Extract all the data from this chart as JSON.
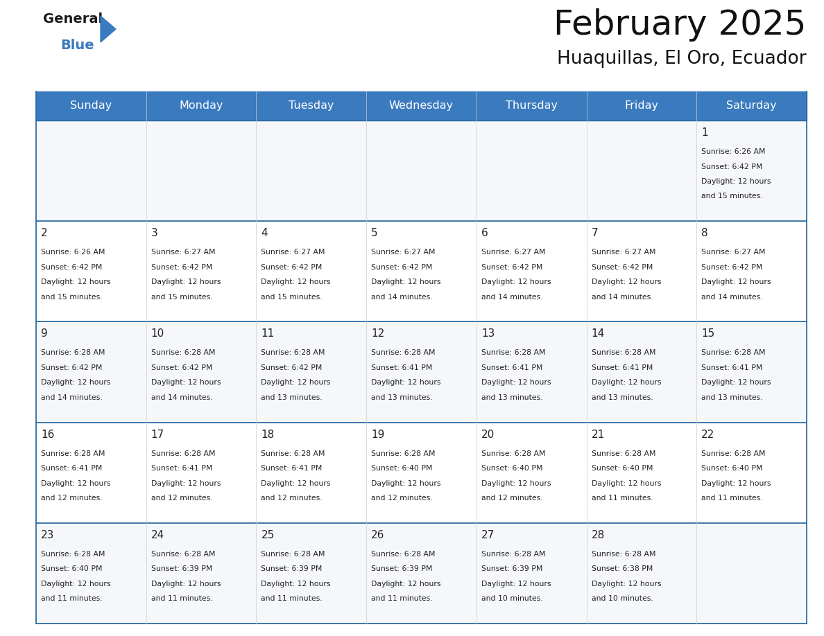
{
  "title": "February 2025",
  "subtitle": "Huaquillas, El Oro, Ecuador",
  "header_color": "#3a7abf",
  "header_text_color": "#ffffff",
  "border_color": "#2e6da4",
  "text_color": "#222222",
  "day_names": [
    "Sunday",
    "Monday",
    "Tuesday",
    "Wednesday",
    "Thursday",
    "Friday",
    "Saturday"
  ],
  "weeks": [
    [
      null,
      null,
      null,
      null,
      null,
      null,
      {
        "day": 1,
        "sunrise": "6:26 AM",
        "sunset": "6:42 PM",
        "daylight": "12 hours\nand 15 minutes."
      }
    ],
    [
      {
        "day": 2,
        "sunrise": "6:26 AM",
        "sunset": "6:42 PM",
        "daylight": "12 hours\nand 15 minutes."
      },
      {
        "day": 3,
        "sunrise": "6:27 AM",
        "sunset": "6:42 PM",
        "daylight": "12 hours\nand 15 minutes."
      },
      {
        "day": 4,
        "sunrise": "6:27 AM",
        "sunset": "6:42 PM",
        "daylight": "12 hours\nand 15 minutes."
      },
      {
        "day": 5,
        "sunrise": "6:27 AM",
        "sunset": "6:42 PM",
        "daylight": "12 hours\nand 14 minutes."
      },
      {
        "day": 6,
        "sunrise": "6:27 AM",
        "sunset": "6:42 PM",
        "daylight": "12 hours\nand 14 minutes."
      },
      {
        "day": 7,
        "sunrise": "6:27 AM",
        "sunset": "6:42 PM",
        "daylight": "12 hours\nand 14 minutes."
      },
      {
        "day": 8,
        "sunrise": "6:27 AM",
        "sunset": "6:42 PM",
        "daylight": "12 hours\nand 14 minutes."
      }
    ],
    [
      {
        "day": 9,
        "sunrise": "6:28 AM",
        "sunset": "6:42 PM",
        "daylight": "12 hours\nand 14 minutes."
      },
      {
        "day": 10,
        "sunrise": "6:28 AM",
        "sunset": "6:42 PM",
        "daylight": "12 hours\nand 14 minutes."
      },
      {
        "day": 11,
        "sunrise": "6:28 AM",
        "sunset": "6:42 PM",
        "daylight": "12 hours\nand 13 minutes."
      },
      {
        "day": 12,
        "sunrise": "6:28 AM",
        "sunset": "6:41 PM",
        "daylight": "12 hours\nand 13 minutes."
      },
      {
        "day": 13,
        "sunrise": "6:28 AM",
        "sunset": "6:41 PM",
        "daylight": "12 hours\nand 13 minutes."
      },
      {
        "day": 14,
        "sunrise": "6:28 AM",
        "sunset": "6:41 PM",
        "daylight": "12 hours\nand 13 minutes."
      },
      {
        "day": 15,
        "sunrise": "6:28 AM",
        "sunset": "6:41 PM",
        "daylight": "12 hours\nand 13 minutes."
      }
    ],
    [
      {
        "day": 16,
        "sunrise": "6:28 AM",
        "sunset": "6:41 PM",
        "daylight": "12 hours\nand 12 minutes."
      },
      {
        "day": 17,
        "sunrise": "6:28 AM",
        "sunset": "6:41 PM",
        "daylight": "12 hours\nand 12 minutes."
      },
      {
        "day": 18,
        "sunrise": "6:28 AM",
        "sunset": "6:41 PM",
        "daylight": "12 hours\nand 12 minutes."
      },
      {
        "day": 19,
        "sunrise": "6:28 AM",
        "sunset": "6:40 PM",
        "daylight": "12 hours\nand 12 minutes."
      },
      {
        "day": 20,
        "sunrise": "6:28 AM",
        "sunset": "6:40 PM",
        "daylight": "12 hours\nand 12 minutes."
      },
      {
        "day": 21,
        "sunrise": "6:28 AM",
        "sunset": "6:40 PM",
        "daylight": "12 hours\nand 11 minutes."
      },
      {
        "day": 22,
        "sunrise": "6:28 AM",
        "sunset": "6:40 PM",
        "daylight": "12 hours\nand 11 minutes."
      }
    ],
    [
      {
        "day": 23,
        "sunrise": "6:28 AM",
        "sunset": "6:40 PM",
        "daylight": "12 hours\nand 11 minutes."
      },
      {
        "day": 24,
        "sunrise": "6:28 AM",
        "sunset": "6:39 PM",
        "daylight": "12 hours\nand 11 minutes."
      },
      {
        "day": 25,
        "sunrise": "6:28 AM",
        "sunset": "6:39 PM",
        "daylight": "12 hours\nand 11 minutes."
      },
      {
        "day": 26,
        "sunrise": "6:28 AM",
        "sunset": "6:39 PM",
        "daylight": "12 hours\nand 11 minutes."
      },
      {
        "day": 27,
        "sunrise": "6:28 AM",
        "sunset": "6:39 PM",
        "daylight": "12 hours\nand 10 minutes."
      },
      {
        "day": 28,
        "sunrise": "6:28 AM",
        "sunset": "6:38 PM",
        "daylight": "12 hours\nand 10 minutes."
      },
      null
    ]
  ],
  "fig_width": 11.88,
  "fig_height": 9.18,
  "dpi": 100
}
